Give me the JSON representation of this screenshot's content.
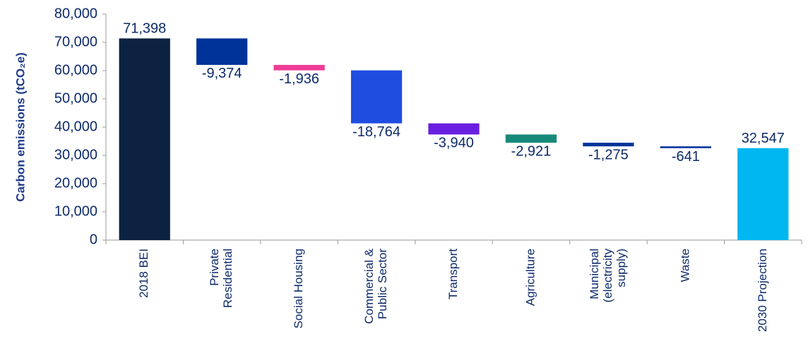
{
  "chart_data": {
    "type": "waterfall",
    "y_label": "Carbon emissions (tCO₂e)",
    "categories": [
      [
        "2018 BEI"
      ],
      [
        "Private",
        "Residential"
      ],
      [
        "Social Housing"
      ],
      [
        "Commercial &",
        "Public Sector"
      ],
      [
        "Transport"
      ],
      [
        "Agriculture"
      ],
      [
        "Municipal",
        "(electricity",
        "supply)"
      ],
      [
        "Waste"
      ],
      [
        "2030 Projection"
      ]
    ],
    "values": [
      71398,
      -9374,
      -1936,
      -18764,
      -3940,
      -2921,
      -1275,
      -641,
      32547
    ],
    "value_labels": [
      "71,398",
      "-9,374",
      "-1,936",
      "-18,764",
      "-3,940",
      "-2,921",
      "-1,275",
      "-641",
      "32,547"
    ],
    "colors": [
      "#0d2240",
      "#003399",
      "#ee3d96",
      "#1f4de0",
      "#6a1fe0",
      "#168a7a",
      "#003399",
      "#003399",
      "#00b7f1"
    ],
    "ylim": [
      0,
      80000
    ],
    "yticks": [
      0,
      {
        "value": 10000,
        "label": "10,000"
      },
      {
        "value": 20000,
        "label": "20,000"
      },
      {
        "value": 30000,
        "label": "30,000"
      },
      {
        "value": 40000,
        "label": "40,000"
      },
      {
        "value": 50000,
        "label": "50,000"
      },
      {
        "value": 60000,
        "label": "60,000"
      },
      {
        "value": 70000,
        "label": "70,000"
      },
      {
        "value": 80000,
        "label": "80,000"
      }
    ],
    "grid": false
  }
}
